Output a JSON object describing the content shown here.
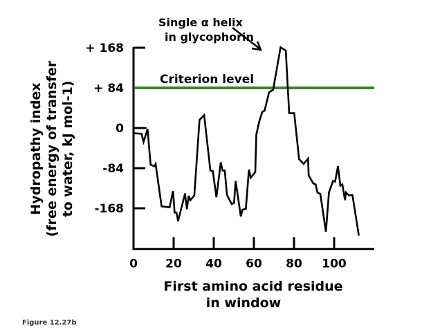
{
  "chart_data": {
    "type": "line",
    "title": "",
    "xlabel": [
      "First amino acid residue",
      "in window"
    ],
    "ylabel": [
      "Hydropathy index",
      "(free energy of transfer",
      "to water, kJ mol-1)"
    ],
    "ylabel_superscript": "-1",
    "xlim": [
      0,
      120
    ],
    "ylim": [
      -253,
      168
    ],
    "xticks": [
      0,
      20,
      40,
      60,
      80,
      100
    ],
    "xtick_labels": [
      "0",
      "20",
      "40",
      "60",
      "80",
      "100"
    ],
    "yticks": [
      168,
      84,
      0,
      -84,
      -168
    ],
    "ytick_labels": [
      "+ 168",
      "+ 84",
      "0",
      "-84",
      "-168"
    ],
    "grid": false,
    "series": [
      {
        "color": "#000000",
        "points": [
          [
            0,
            -11
          ],
          [
            4,
            -12
          ],
          [
            5,
            -29
          ],
          [
            7,
            -2
          ],
          [
            8.5,
            -77
          ],
          [
            10.5,
            -80
          ],
          [
            11,
            -75
          ],
          [
            14,
            -164
          ],
          [
            18,
            -166
          ],
          [
            19.7,
            -132
          ],
          [
            20.5,
            -177
          ],
          [
            21.4,
            -177
          ],
          [
            22.2,
            -195
          ],
          [
            25.7,
            -137
          ],
          [
            26.6,
            -170
          ],
          [
            27.5,
            -142
          ],
          [
            28.3,
            -151
          ],
          [
            30.3,
            -141
          ],
          [
            32.9,
            17
          ],
          [
            35.2,
            27
          ],
          [
            38.3,
            -89
          ],
          [
            39.5,
            -90
          ],
          [
            41.3,
            -145
          ],
          [
            43.5,
            -72
          ],
          [
            44.4,
            -89
          ],
          [
            45.5,
            -89
          ],
          [
            46.6,
            -140
          ],
          [
            48.9,
            -159
          ],
          [
            50.1,
            -157
          ],
          [
            50.9,
            -111
          ],
          [
            53.5,
            -185
          ],
          [
            54.3,
            -171
          ],
          [
            56,
            -169
          ],
          [
            57.5,
            -87
          ],
          [
            58.4,
            -104
          ],
          [
            60.7,
            -92
          ],
          [
            61.2,
            -14
          ],
          [
            62.7,
            14
          ],
          [
            64.2,
            34
          ],
          [
            65.3,
            36
          ],
          [
            67.6,
            75
          ],
          [
            69.6,
            80
          ],
          [
            73.3,
            169
          ],
          [
            75.9,
            162
          ],
          [
            77.6,
            31
          ],
          [
            80.1,
            31
          ],
          [
            82.5,
            -65
          ],
          [
            84.8,
            -75
          ],
          [
            87,
            -64
          ],
          [
            87.3,
            -99
          ],
          [
            89.6,
            -116
          ],
          [
            90.8,
            -118
          ],
          [
            91.7,
            -135
          ],
          [
            93.1,
            -138
          ],
          [
            95.9,
            -217
          ],
          [
            97.4,
            -135
          ],
          [
            99.4,
            -111
          ],
          [
            100.5,
            -112
          ],
          [
            101.9,
            -80
          ],
          [
            103.1,
            -121
          ],
          [
            104.1,
            -118
          ],
          [
            105.4,
            -151
          ],
          [
            105.9,
            -135
          ],
          [
            107.4,
            -141
          ],
          [
            109.1,
            -140
          ],
          [
            112.3,
            -225
          ]
        ]
      }
    ],
    "reference_line": {
      "label": "Criterion level",
      "y": 84,
      "color": "#3f7f2f"
    },
    "annotation": {
      "lines": [
        "Single α helix",
        "in glycophorin"
      ],
      "target": [
        73.3,
        169
      ]
    }
  },
  "footer": "Figure 12.27b"
}
